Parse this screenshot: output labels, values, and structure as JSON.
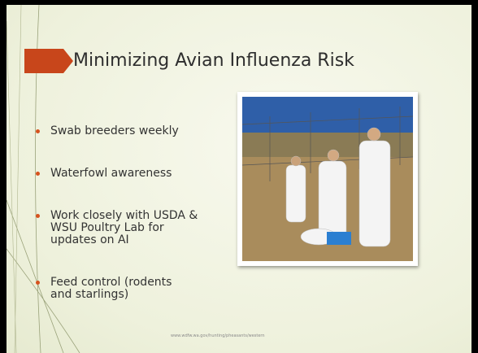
{
  "slide": {
    "title": "Minimizing Avian Influenza Risk",
    "bullets": [
      "Swab breeders weekly",
      "Waterfowl awareness",
      "Work closely with USDA & WSU Poultry Lab for updates on AI",
      "Feed control (rodents and starlings)"
    ],
    "footer": "www.wdfw.wa.gov/hunting/pheasants/western"
  }
}
